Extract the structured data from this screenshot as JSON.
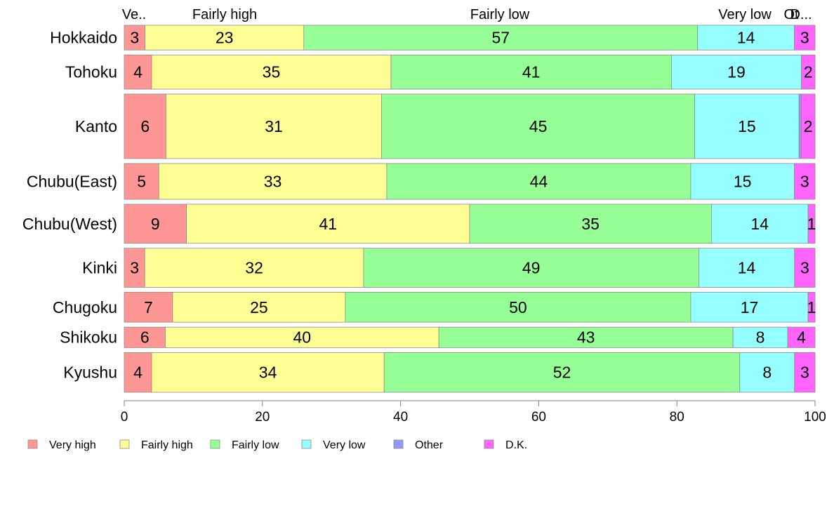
{
  "chart_data": {
    "type": "bar",
    "orientation": "horizontal",
    "stacked": true,
    "categories": [
      "Hokkaido",
      "Tohoku",
      "Kanto",
      "Chubu(East)",
      "Chubu(West)",
      "Kinki",
      "Chugoku",
      "Shikoku",
      "Kyushu"
    ],
    "series": [
      {
        "name": "Very high",
        "color": "#ff9696",
        "values": [
          3,
          4,
          6,
          5,
          9,
          3,
          7,
          6,
          4
        ]
      },
      {
        "name": "Fairly high",
        "color": "#ffff96",
        "values": [
          23,
          35,
          31,
          33,
          41,
          32,
          25,
          40,
          34
        ]
      },
      {
        "name": "Fairly low",
        "color": "#96ff96",
        "values": [
          57,
          41,
          45,
          44,
          35,
          49,
          50,
          43,
          52
        ]
      },
      {
        "name": "Very low",
        "color": "#96ffff",
        "values": [
          14,
          19,
          15,
          15,
          14,
          14,
          17,
          8,
          8
        ]
      },
      {
        "name": "Other",
        "color": "#9696ff",
        "values": [
          0,
          0,
          0.3,
          0,
          0,
          0,
          0,
          0,
          0
        ]
      },
      {
        "name": "D.K.",
        "color": "#ff64ff",
        "values": [
          3,
          2,
          2,
          3,
          1,
          3,
          1,
          4,
          3
        ]
      }
    ],
    "top_labels": [
      "Ve..",
      "Fairly high",
      "Fairly low",
      "Very low",
      "Ot",
      "D..."
    ],
    "bar_weights": [
      0.76,
      1.05,
      1.98,
      1.1,
      1.2,
      1.2,
      0.92,
      0.63,
      1.22
    ],
    "xlim": [
      0,
      100
    ],
    "xticks": [
      "0",
      "20",
      "40",
      "60",
      "80",
      "100"
    ],
    "xlabel": "",
    "ylabel": "",
    "title": "",
    "legend_position": "bottom",
    "grid": false
  }
}
